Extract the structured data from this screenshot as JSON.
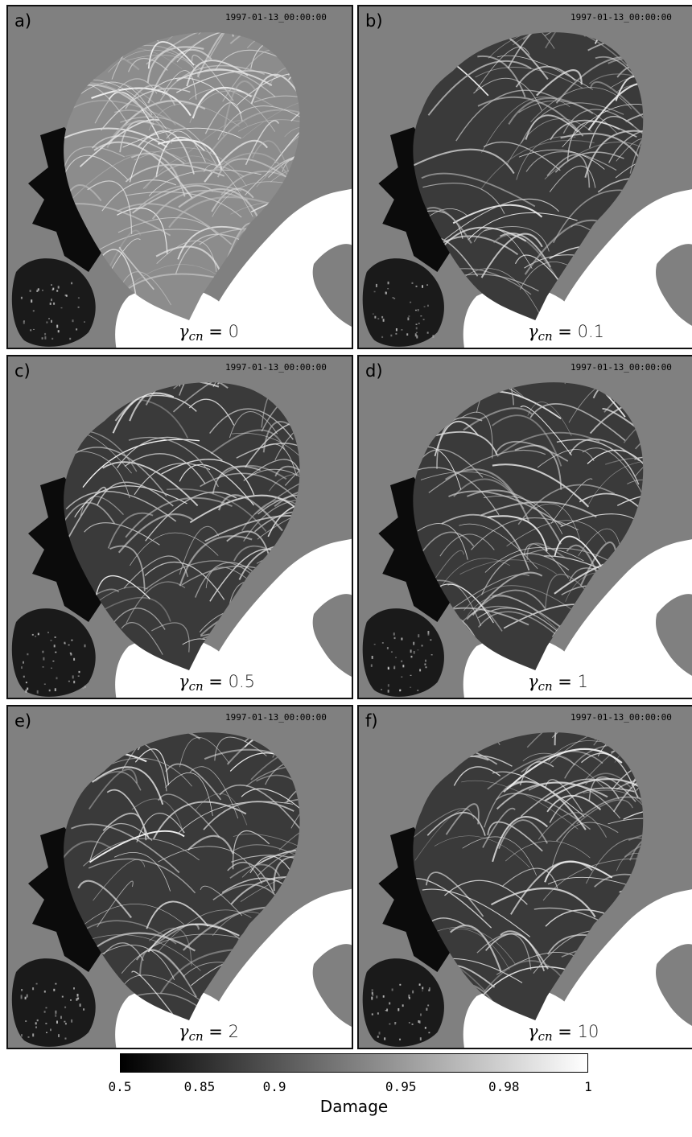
{
  "timestamp": "1997-01-13_00:00:00",
  "gamma_symbol": "γ",
  "gamma_subscript": "cn",
  "panels": [
    {
      "letter": "a)",
      "gamma_value": "0"
    },
    {
      "letter": "b)",
      "gamma_value": "0.1"
    },
    {
      "letter": "c)",
      "gamma_value": "0.5"
    },
    {
      "letter": "d)",
      "gamma_value": "1"
    },
    {
      "letter": "e)",
      "gamma_value": "2"
    },
    {
      "letter": "f)",
      "gamma_value": "10"
    }
  ],
  "colorbar": {
    "label": "Damage",
    "ticks": [
      "0.5",
      "0.85",
      "0.9",
      "0.95",
      "0.98",
      "1"
    ],
    "tick_fractions": [
      0.0,
      0.17,
      0.33,
      0.6,
      0.82,
      1.0
    ],
    "colors": [
      "#000000",
      "#ffffff"
    ]
  },
  "colors": {
    "land": "#ffffff",
    "ocean": "#808080",
    "damage_low": "#000000",
    "damage_high": "#ffffff"
  }
}
